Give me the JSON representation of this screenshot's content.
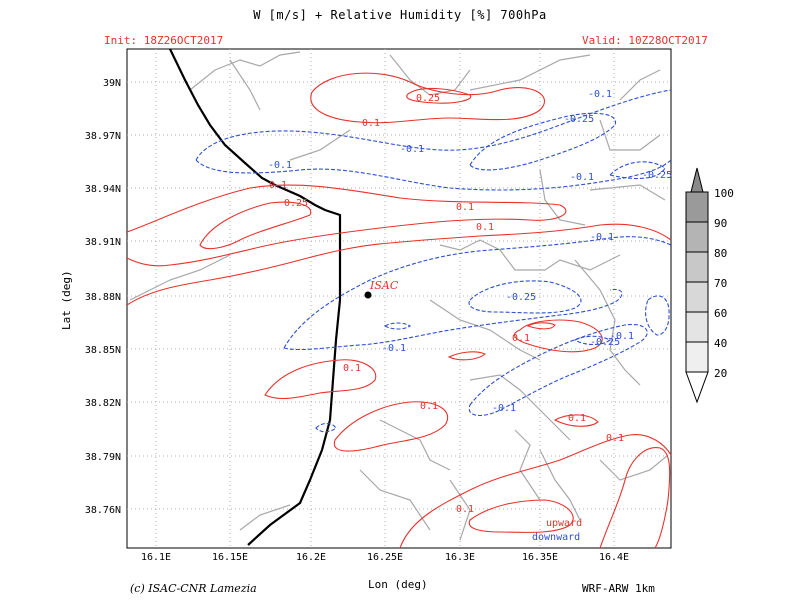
{
  "header": {
    "title": "W [m/s] + Relative Humidity [%] 700hPa",
    "init": "Init: 18Z26OCT2017",
    "valid": "Valid: 10Z28OCT2017"
  },
  "axes": {
    "xlabel": "Lon (deg)",
    "ylabel": "Lat (deg)",
    "xticks": [
      "16.1E",
      "16.15E",
      "16.2E",
      "16.25E",
      "16.3E",
      "16.35E",
      "16.4E"
    ],
    "yticks": [
      "39N",
      "38.97N",
      "38.94N",
      "38.91N",
      "38.88N",
      "38.85N",
      "38.82N",
      "38.79N",
      "38.76N"
    ]
  },
  "station": {
    "name": "ISAC"
  },
  "contour_labels": {
    "red": [
      "0.25",
      "0.1",
      "0.1",
      "0.25",
      "0.1",
      "0.1",
      "0.1",
      "0.1",
      "0.1",
      "0.1",
      "0.1",
      "0.1"
    ],
    "blue": [
      "-0.1",
      "-0.25",
      "-0.1",
      "-0.1",
      "-0.25",
      "-0.1",
      "-0.1",
      "-0.25",
      "-0.1",
      "-0.25",
      "-0.1",
      "-0.1"
    ]
  },
  "legend": {
    "upward": "upward",
    "downward": "downward"
  },
  "colorbar": {
    "levels": [
      "100",
      "90",
      "80",
      "70",
      "60",
      "40",
      "20"
    ]
  },
  "footer": {
    "credit": "(c) ISAC-CNR Lamezia",
    "model": "WRF-ARW 1km"
  },
  "colors": {
    "upward": "#e8322d",
    "downward": "#2e4fd0",
    "coast": "#000000",
    "roads": "#a8a8a8"
  }
}
